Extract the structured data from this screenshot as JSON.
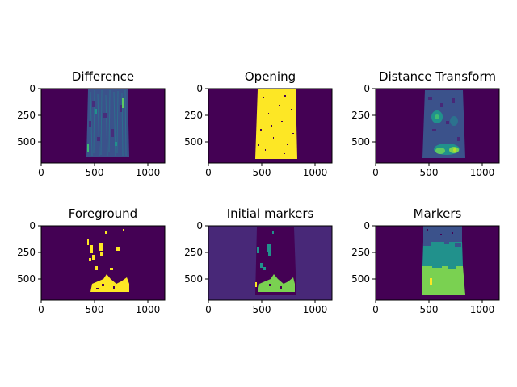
{
  "colors": {
    "viridis_dark": "#440154",
    "viridis_blue": "#3b528b",
    "viridis_teal": "#21918c",
    "viridis_green": "#5ec962",
    "viridis_yellow": "#fde725",
    "axis": "#000000"
  },
  "chart_data": [
    {
      "type": "heatmap",
      "title": "Difference",
      "xticks": [
        "0",
        "500",
        "1000"
      ],
      "yticks": [
        "0",
        "250",
        "500"
      ],
      "x": [
        0,
        500,
        1000
      ],
      "y": [
        0,
        250,
        500
      ],
      "xlim": [
        0,
        1160
      ],
      "ylim": [
        700,
        0
      ],
      "grid": false,
      "colormap": "viridis"
    },
    {
      "type": "heatmap",
      "title": "Opening",
      "xticks": [
        "0",
        "500",
        "1000"
      ],
      "yticks": [
        "0",
        "250",
        "500"
      ],
      "x": [
        0,
        500,
        1000
      ],
      "y": [
        0,
        250,
        500
      ],
      "xlim": [
        0,
        1160
      ],
      "ylim": [
        700,
        0
      ],
      "grid": false,
      "colormap": "viridis"
    },
    {
      "type": "heatmap",
      "title": "Distance Transform",
      "xticks": [
        "0",
        "500",
        "1000"
      ],
      "yticks": [
        "0",
        "250",
        "500"
      ],
      "x": [
        0,
        500,
        1000
      ],
      "y": [
        0,
        250,
        500
      ],
      "xlim": [
        0,
        1160
      ],
      "ylim": [
        700,
        0
      ],
      "grid": false,
      "colormap": "viridis"
    },
    {
      "type": "heatmap",
      "title": "Foreground",
      "xticks": [
        "0",
        "500",
        "1000"
      ],
      "yticks": [
        "0",
        "250",
        "500"
      ],
      "x": [
        0,
        500,
        1000
      ],
      "y": [
        0,
        250,
        500
      ],
      "xlim": [
        0,
        1160
      ],
      "ylim": [
        700,
        0
      ],
      "grid": false,
      "colormap": "viridis"
    },
    {
      "type": "heatmap",
      "title": "Initial markers",
      "xticks": [
        "0",
        "500",
        "1000"
      ],
      "yticks": [
        "0",
        "250",
        "500"
      ],
      "x": [
        0,
        500,
        1000
      ],
      "y": [
        0,
        250,
        500
      ],
      "xlim": [
        0,
        1160
      ],
      "ylim": [
        700,
        0
      ],
      "grid": false,
      "colormap": "viridis"
    },
    {
      "type": "heatmap",
      "title": "Markers",
      "xticks": [
        "0",
        "500",
        "1000"
      ],
      "yticks": [
        "0",
        "250",
        "500"
      ],
      "x": [
        0,
        500,
        1000
      ],
      "y": [
        0,
        250,
        500
      ],
      "xlim": [
        0,
        1160
      ],
      "ylim": [
        700,
        0
      ],
      "grid": false,
      "colormap": "viridis"
    }
  ]
}
